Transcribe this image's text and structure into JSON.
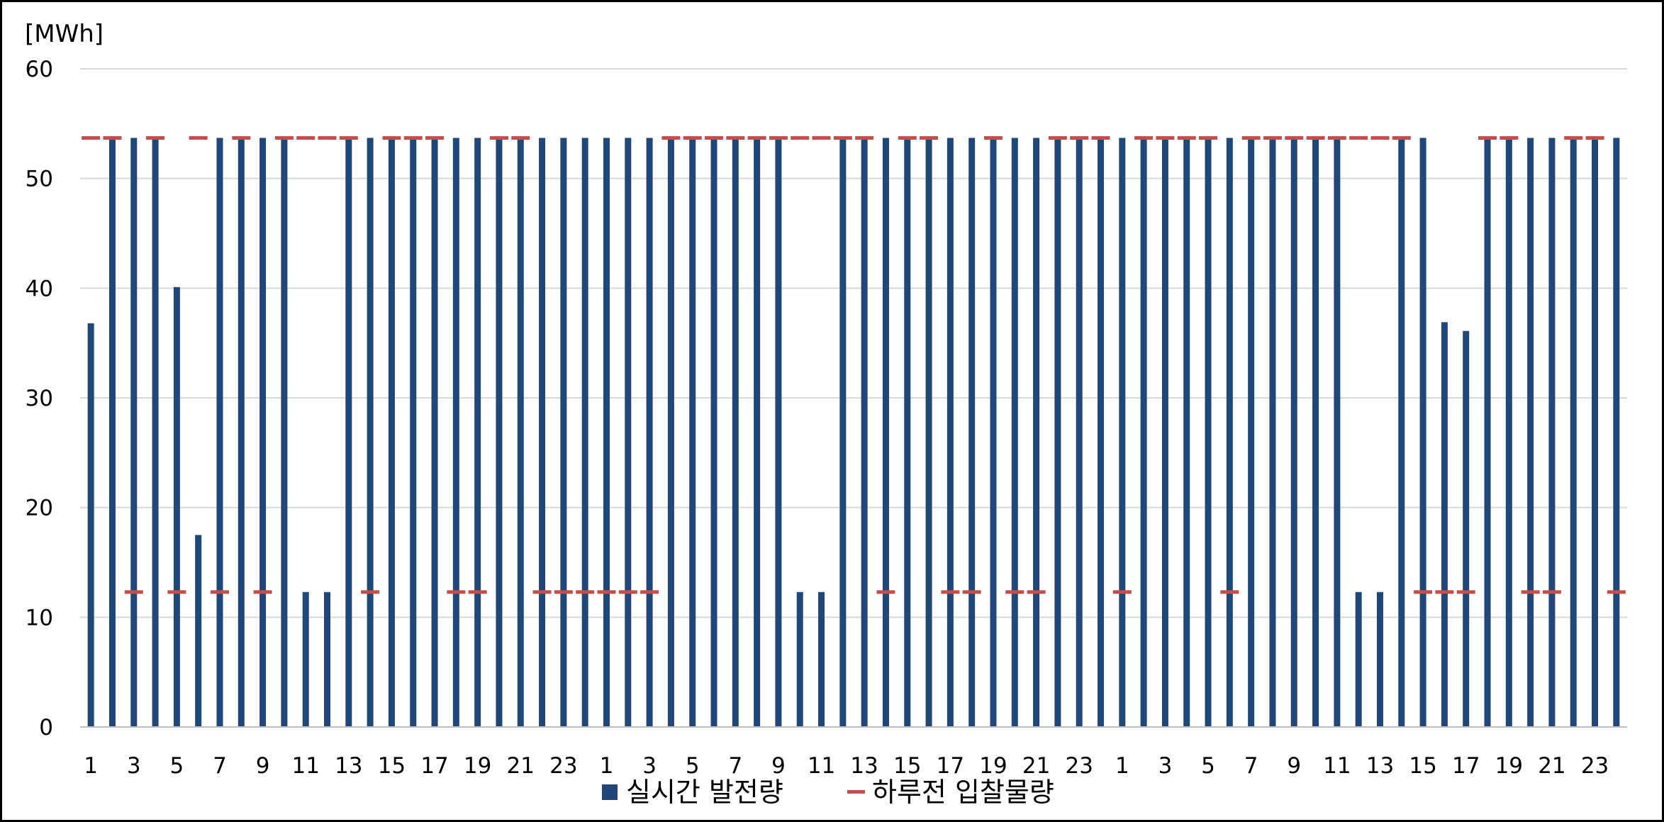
{
  "chart_data": {
    "type": "bar",
    "title": "",
    "xlabel": "",
    "ylabel": "[MWh]",
    "ylim": [
      0,
      60
    ],
    "yticks": [
      0,
      10,
      20,
      30,
      40,
      50,
      60
    ],
    "grid": true,
    "legend_position": "bottom",
    "x": [
      1,
      2,
      3,
      4,
      5,
      6,
      7,
      8,
      9,
      10,
      11,
      12,
      13,
      14,
      15,
      16,
      17,
      18,
      19,
      20,
      21,
      22,
      23,
      24,
      1,
      2,
      3,
      4,
      5,
      6,
      7,
      8,
      9,
      10,
      11,
      12,
      13,
      14,
      15,
      16,
      17,
      18,
      19,
      20,
      21,
      22,
      23,
      24,
      1,
      2,
      3,
      4,
      5,
      6,
      7,
      8,
      9,
      10,
      11,
      12,
      13,
      14,
      15,
      16,
      17,
      18,
      19,
      20,
      21,
      22,
      23,
      24
    ],
    "x_tick_labels": [
      "1",
      "3",
      "5",
      "7",
      "9",
      "11",
      "13",
      "15",
      "17",
      "19",
      "21",
      "23",
      "1",
      "3",
      "5",
      "7",
      "9",
      "11",
      "13",
      "15",
      "17",
      "19",
      "21",
      "23",
      "1",
      "3",
      "5",
      "7",
      "9",
      "11",
      "13",
      "15",
      "17",
      "19",
      "21",
      "23"
    ],
    "series": [
      {
        "name": "실시간 발전량",
        "type": "bar",
        "color": "#1f477a",
        "values": [
          36.8,
          53.7,
          53.7,
          53.7,
          40.1,
          17.5,
          53.7,
          53.7,
          53.7,
          53.7,
          12.3,
          12.3,
          53.7,
          53.7,
          53.7,
          53.7,
          53.7,
          53.7,
          53.7,
          53.7,
          53.7,
          53.7,
          53.7,
          53.7,
          53.7,
          53.7,
          53.7,
          53.7,
          53.7,
          53.7,
          53.7,
          53.7,
          53.7,
          12.3,
          12.3,
          53.7,
          53.7,
          53.7,
          53.7,
          53.7,
          53.7,
          53.7,
          53.7,
          53.7,
          53.7,
          53.7,
          53.7,
          53.7,
          53.7,
          53.7,
          53.7,
          53.7,
          53.7,
          53.7,
          53.7,
          53.7,
          53.7,
          53.7,
          53.7,
          12.3,
          12.3,
          53.7,
          53.7,
          36.9,
          36.1,
          53.7,
          53.7,
          53.7,
          53.7,
          53.7,
          53.7,
          53.7
        ]
      },
      {
        "name": "하루전 입찰물량",
        "type": "dash",
        "color": "#c0504d",
        "values": [
          53.7,
          53.7,
          12.3,
          53.7,
          12.3,
          53.7,
          12.3,
          53.7,
          12.3,
          53.7,
          53.7,
          53.7,
          53.7,
          12.3,
          53.7,
          53.7,
          53.7,
          12.3,
          12.3,
          53.7,
          53.7,
          12.3,
          12.3,
          12.3,
          12.3,
          12.3,
          12.3,
          53.7,
          53.7,
          53.7,
          53.7,
          53.7,
          53.7,
          53.7,
          53.7,
          53.7,
          53.7,
          12.3,
          53.7,
          53.7,
          12.3,
          12.3,
          53.7,
          12.3,
          12.3,
          53.7,
          53.7,
          53.7,
          12.3,
          53.7,
          53.7,
          53.7,
          53.7,
          12.3,
          53.7,
          53.7,
          53.7,
          53.7,
          53.7,
          53.7,
          53.7,
          53.7,
          12.3,
          12.3,
          12.3,
          53.7,
          53.7,
          12.3,
          12.3,
          53.7,
          53.7,
          12.3
        ]
      }
    ]
  }
}
